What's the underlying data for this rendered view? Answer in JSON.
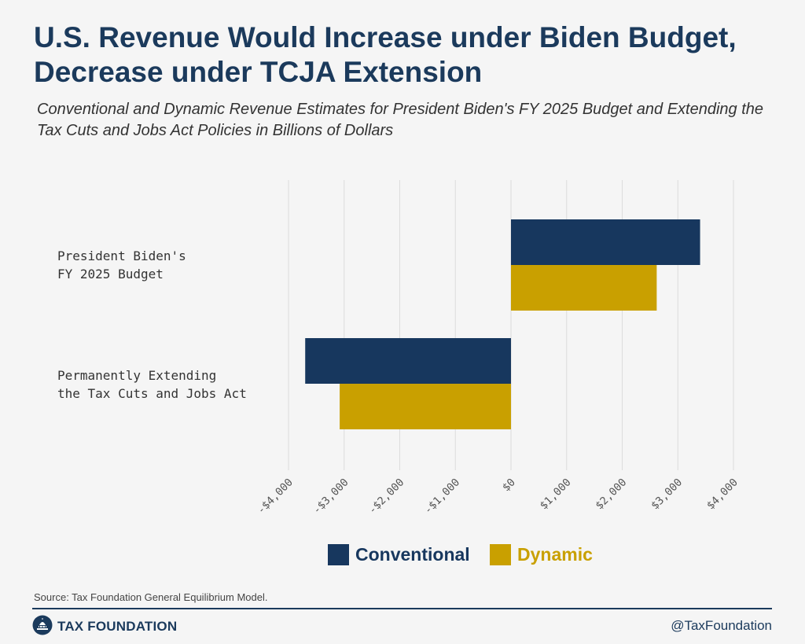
{
  "header": {
    "title": "U.S. Revenue Would Increase under Biden Budget, Decrease under TCJA Extension",
    "subtitle": "Conventional and Dynamic Revenue Estimates for President Biden's FY 2025 Budget and Extending the Tax Cuts and Jobs Act Policies in Billions of Dollars"
  },
  "chart_data": {
    "type": "bar",
    "orientation": "horizontal",
    "title": "U.S. Revenue Would Increase under Biden Budget, Decrease under TCJA Extension",
    "categories": [
      [
        "President Biden's",
        "FY 2025 Budget"
      ],
      [
        "Permanently Extending",
        "the Tax Cuts and Jobs Act"
      ]
    ],
    "series": [
      {
        "name": "Conventional",
        "color": "#17375e",
        "values": [
          3400,
          -3700
        ]
      },
      {
        "name": "Dynamic",
        "color": "#c9a000",
        "values": [
          2620,
          -3080
        ]
      }
    ],
    "xlim": [
      -4000,
      4000
    ],
    "xticks": [
      -4000,
      -3000,
      -2000,
      -1000,
      0,
      1000,
      2000,
      3000,
      4000
    ],
    "xtick_labels": [
      "-$4,000",
      "-$3,000",
      "-$2,000",
      "-$1,000",
      "$0",
      "$1,000",
      "$2,000",
      "$3,000",
      "$4,000"
    ],
    "grid": true,
    "legend_position": "bottom-center"
  },
  "footer": {
    "source": "Source: Tax Foundation General Equilibrium Model.",
    "logo_text": "TAX FOUNDATION",
    "handle": "@TaxFoundation"
  }
}
